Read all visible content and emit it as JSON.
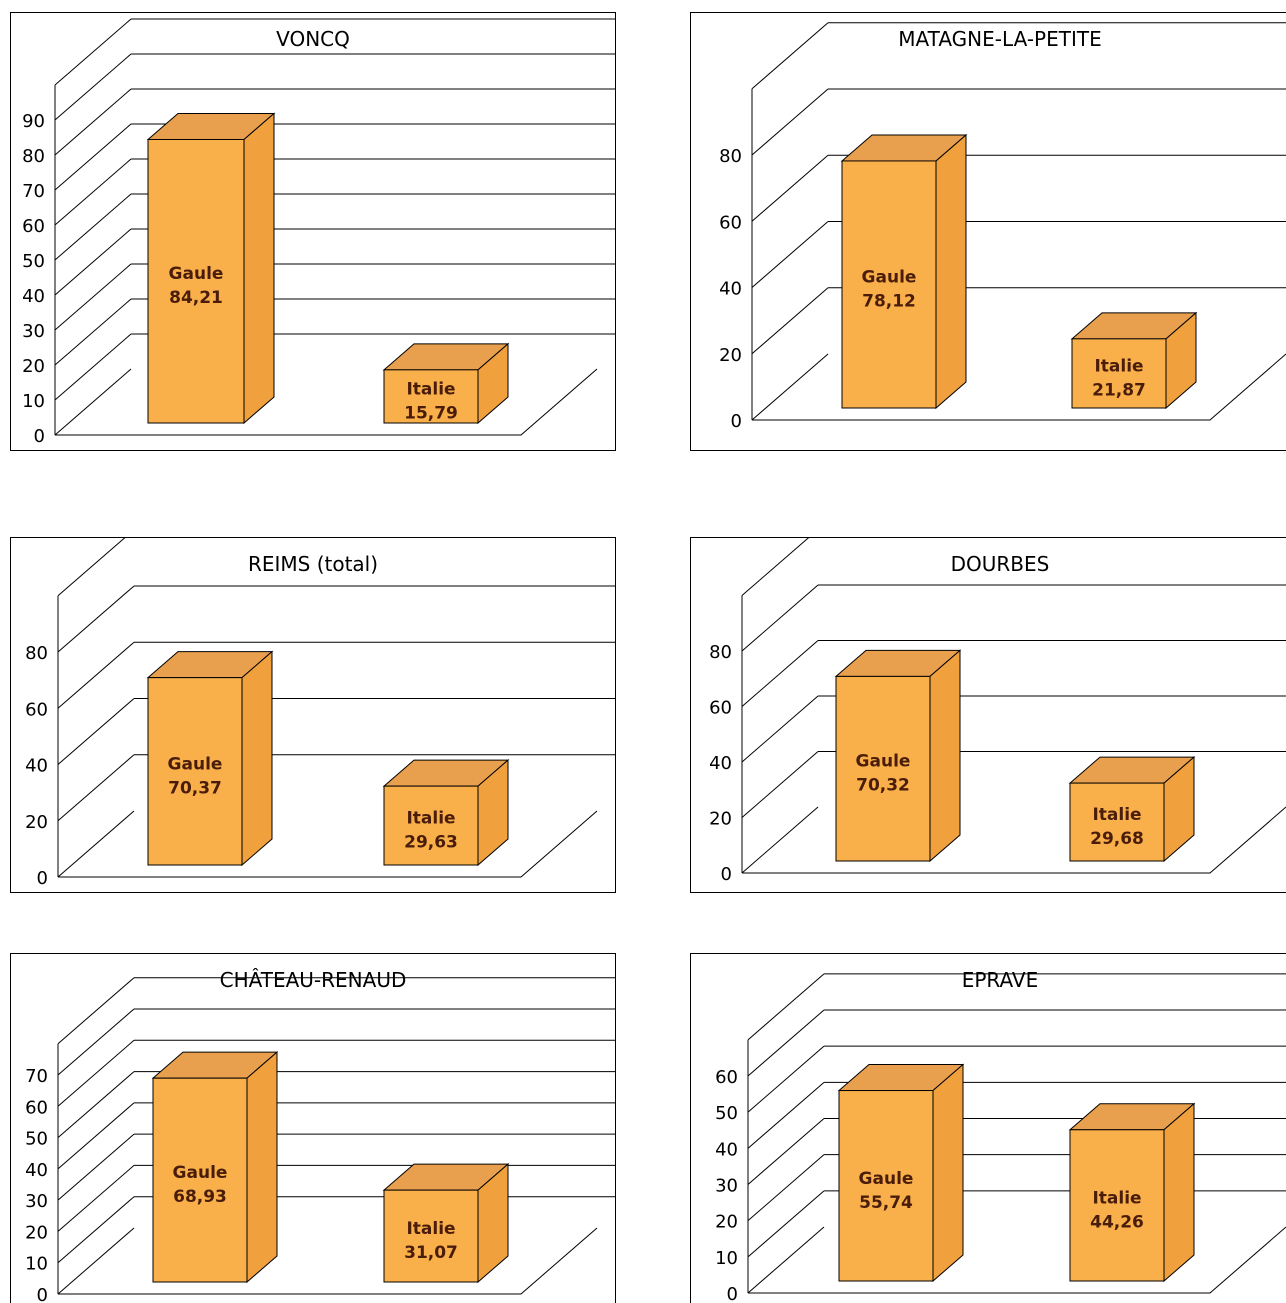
{
  "colors": {
    "bar_front": "#f9b04b",
    "bar_side": "#f0a13e",
    "bar_top": "#e8a04e",
    "gridline": "#000000",
    "text": "#000000",
    "label_text": "#4a1c0a",
    "background": "#ffffff"
  },
  "chart_data": [
    {
      "type": "bar",
      "title": "VONCQ",
      "categories": [
        "Gaule",
        "Italie"
      ],
      "values": [
        84.21,
        15.79
      ],
      "value_labels": [
        "84,21",
        "15,79"
      ],
      "ylim": [
        0,
        90
      ],
      "yticks": [
        "0",
        "10",
        "20",
        "30",
        "40",
        "50",
        "60",
        "70",
        "80",
        "90"
      ],
      "xlabel": "",
      "ylabel": "",
      "grid": true,
      "legend": "none",
      "three_d": true
    },
    {
      "type": "bar",
      "title": "MATAGNE-LA-PETITE",
      "categories": [
        "Gaule",
        "Italie"
      ],
      "values": [
        78.12,
        21.87
      ],
      "value_labels": [
        "78,12",
        "21,87"
      ],
      "ylim": [
        0,
        80
      ],
      "yticks": [
        "0",
        "20",
        "40",
        "60",
        "80"
      ],
      "xlabel": "",
      "ylabel": "",
      "grid": true,
      "legend": "none",
      "three_d": true
    },
    {
      "type": "bar",
      "title": "REIMS (total)",
      "categories": [
        "Gaule",
        "Italie"
      ],
      "values": [
        70.37,
        29.63
      ],
      "value_labels": [
        "70,37",
        "29,63"
      ],
      "ylim": [
        0,
        80
      ],
      "yticks": [
        "0",
        "20",
        "40",
        "60",
        "80"
      ],
      "xlabel": "",
      "ylabel": "",
      "grid": true,
      "legend": "none",
      "three_d": true
    },
    {
      "type": "bar",
      "title": "DOURBES",
      "categories": [
        "Gaule",
        "Italie"
      ],
      "values": [
        70.32,
        29.68
      ],
      "value_labels": [
        "70,32",
        "29,68"
      ],
      "ylim": [
        0,
        80
      ],
      "yticks": [
        "0",
        "20",
        "40",
        "60",
        "80"
      ],
      "xlabel": "",
      "ylabel": "",
      "grid": true,
      "legend": "none",
      "three_d": true
    },
    {
      "type": "bar",
      "title": "CHÂTEAU-RENAUD",
      "categories": [
        "Gaule",
        "Italie"
      ],
      "values": [
        68.93,
        31.07
      ],
      "value_labels": [
        "68,93",
        "31,07"
      ],
      "ylim": [
        0,
        70
      ],
      "yticks": [
        "0",
        "10",
        "20",
        "30",
        "40",
        "50",
        "60",
        "70"
      ],
      "xlabel": "",
      "ylabel": "",
      "grid": true,
      "legend": "none",
      "three_d": true
    },
    {
      "type": "bar",
      "title": "EPRAVE",
      "categories": [
        "Gaule",
        "Italie"
      ],
      "values": [
        55.74,
        44.26
      ],
      "value_labels": [
        "55,74",
        "44,26"
      ],
      "ylim": [
        0,
        60
      ],
      "yticks": [
        "0",
        "10",
        "20",
        "30",
        "40",
        "50",
        "60"
      ],
      "xlabel": "",
      "ylabel": "",
      "grid": true,
      "legend": "none",
      "three_d": true
    }
  ]
}
